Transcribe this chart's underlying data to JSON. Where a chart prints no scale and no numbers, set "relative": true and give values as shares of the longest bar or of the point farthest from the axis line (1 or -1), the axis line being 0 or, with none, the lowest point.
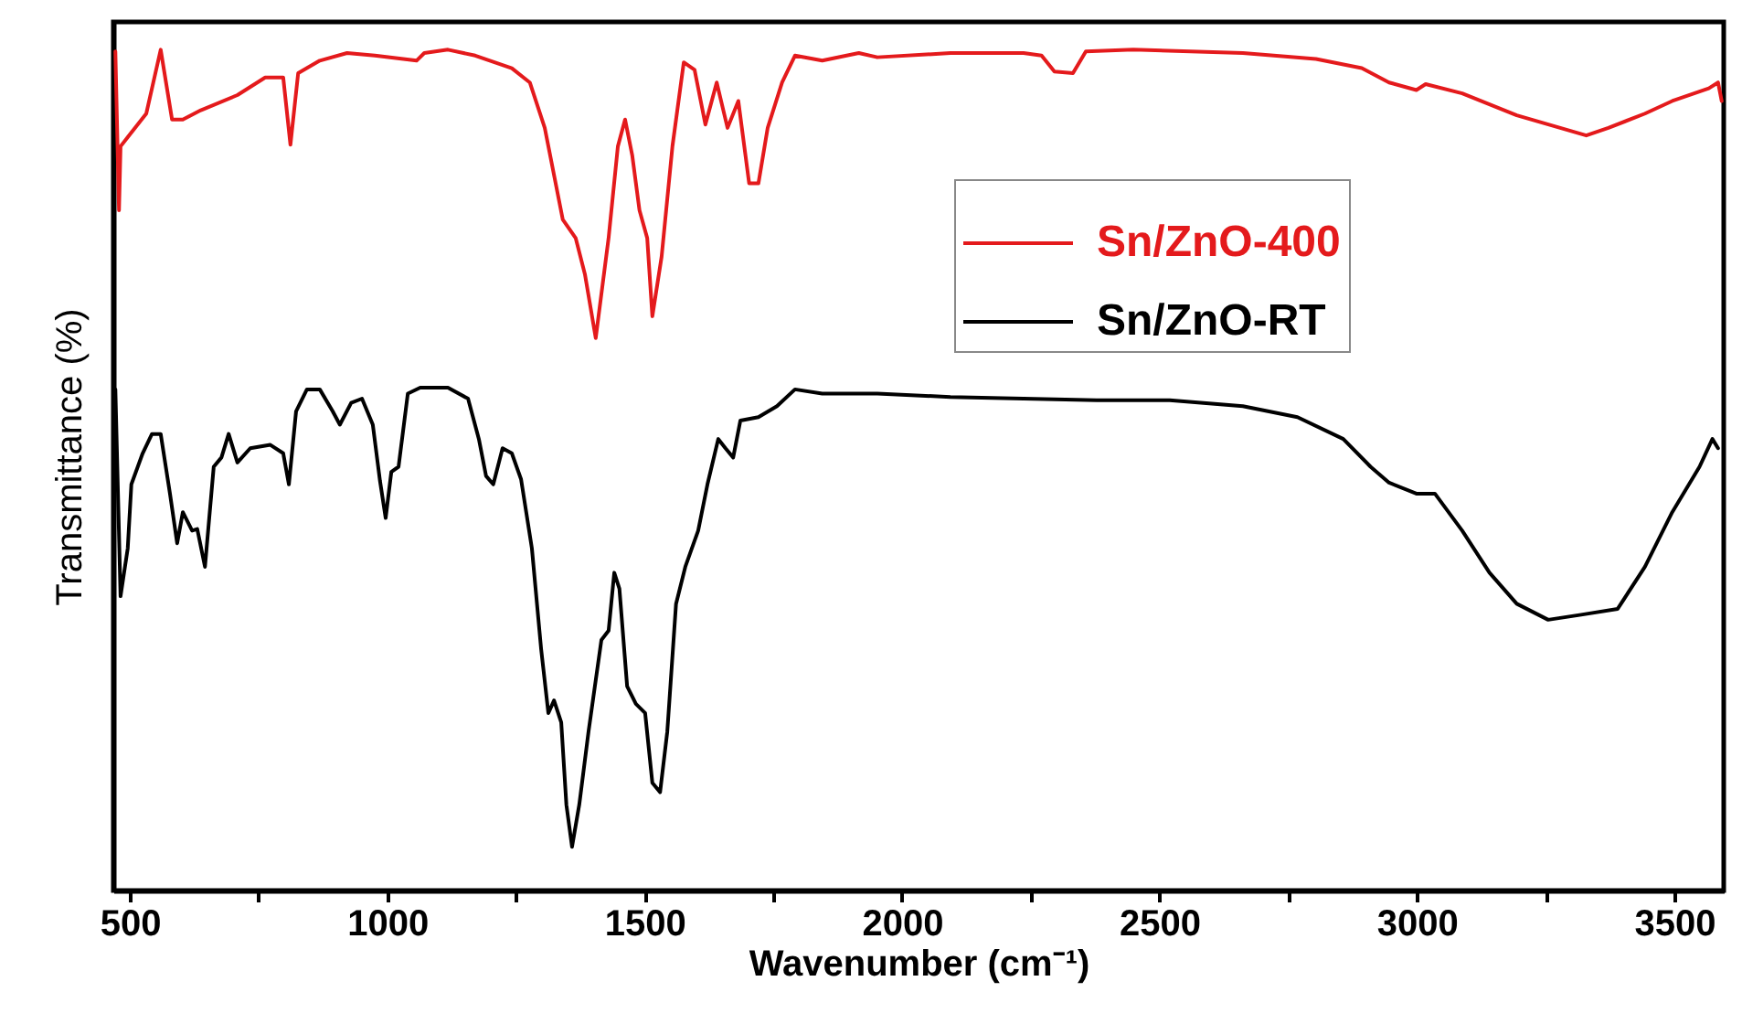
{
  "chart_data": {
    "type": "line",
    "xlabel": "Wavenumber (cm⁻¹)",
    "ylabel": "Transmittance (%)",
    "relative": true,
    "xlim": [
      468,
      3596
    ],
    "xticks": [
      500,
      {
        "value": 750,
        "label": null
      },
      1000,
      {
        "value": 1250,
        "label": null
      },
      1500,
      {
        "value": 1750,
        "label": null
      },
      2000,
      {
        "value": 2250,
        "label": null
      },
      2500,
      {
        "value": 2750,
        "label": null
      },
      3000,
      {
        "value": 3250,
        "label": null
      },
      3500
    ],
    "tick_labels": "x",
    "legend": "top right",
    "grid": false,
    "series": [
      {
        "name": "Sn/ZnO-400",
        "color": "#e41a1c",
        "x": [
          472,
          479,
          482,
          496,
          532,
          560,
          582,
          603,
          638,
          709,
          763,
          798,
          812,
          827,
          869,
          922,
          976,
          1057,
          1072,
          1118,
          1171,
          1242,
          1277,
          1306,
          1341,
          1366,
          1384,
          1405,
          1430,
          1448,
          1462,
          1476,
          1490,
          1505,
          1515,
          1533,
          1554,
          1576,
          1597,
          1618,
          1640,
          1661,
          1682,
          1703,
          1721,
          1739,
          1767,
          1792,
          1845,
          1916,
          1952,
          2094,
          2236,
          2271,
          2296,
          2332,
          2357,
          2449,
          2662,
          2804,
          2893,
          2946,
          2999,
          3017,
          3088,
          3194,
          3329,
          3372,
          3443,
          3496,
          3567,
          3585,
          3592
        ],
        "values": [
          0.998,
          0.809,
          0.885,
          0.896,
          0.924,
          1.0,
          0.917,
          0.917,
          0.928,
          0.946,
          0.967,
          0.967,
          0.887,
          0.972,
          0.987,
          0.996,
          0.993,
          0.987,
          0.996,
          1.0,
          0.993,
          0.978,
          0.961,
          0.907,
          0.798,
          0.776,
          0.733,
          0.657,
          0.776,
          0.885,
          0.917,
          0.874,
          0.809,
          0.776,
          0.683,
          0.754,
          0.885,
          0.985,
          0.976,
          0.911,
          0.961,
          0.907,
          0.939,
          0.841,
          0.841,
          0.907,
          0.961,
          0.993,
          0.987,
          0.996,
          0.991,
          0.996,
          0.996,
          0.993,
          0.974,
          0.972,
          0.998,
          1.0,
          0.996,
          0.989,
          0.978,
          0.961,
          0.952,
          0.959,
          0.948,
          0.922,
          0.898,
          0.907,
          0.924,
          0.939,
          0.954,
          0.961,
          0.939
        ]
      },
      {
        "name": "Sn/ZnO-RT",
        "color": "#000000",
        "x": [
          472,
          482,
          496,
          503,
          525,
          543,
          560,
          578,
          592,
          603,
          621,
          631,
          646,
          663,
          678,
          692,
          709,
          734,
          773,
          798,
          809,
          823,
          844,
          869,
          894,
          908,
          930,
          951,
          972,
          986,
          997,
          1008,
          1022,
          1040,
          1064,
          1118,
          1157,
          1178,
          1192,
          1206,
          1224,
          1242,
          1260,
          1281,
          1299,
          1313,
          1324,
          1338,
          1348,
          1359,
          1373,
          1391,
          1416,
          1430,
          1441,
          1451,
          1466,
          1483,
          1501,
          1515,
          1530,
          1544,
          1561,
          1579,
          1604,
          1622,
          1643,
          1657,
          1672,
          1686,
          1721,
          1757,
          1792,
          1845,
          1916,
          1952,
          2094,
          2236,
          2378,
          2520,
          2662,
          2768,
          2857,
          2910,
          2946,
          2999,
          3035,
          3088,
          3141,
          3194,
          3255,
          3319,
          3390,
          3443,
          3496,
          3549,
          3574,
          3585
        ],
        "values": [
          0.596,
          0.35,
          0.407,
          0.483,
          0.52,
          0.543,
          0.543,
          0.472,
          0.413,
          0.45,
          0.428,
          0.43,
          0.385,
          0.504,
          0.515,
          0.543,
          0.509,
          0.526,
          0.53,
          0.52,
          0.483,
          0.57,
          0.596,
          0.596,
          0.57,
          0.554,
          0.58,
          0.585,
          0.554,
          0.487,
          0.443,
          0.498,
          0.504,
          0.591,
          0.598,
          0.598,
          0.585,
          0.537,
          0.493,
          0.483,
          0.526,
          0.52,
          0.489,
          0.407,
          0.287,
          0.211,
          0.226,
          0.2,
          0.102,
          0.052,
          0.102,
          0.189,
          0.298,
          0.309,
          0.378,
          0.359,
          0.243,
          0.222,
          0.211,
          0.128,
          0.117,
          0.189,
          0.341,
          0.385,
          0.428,
          0.483,
          0.537,
          0.526,
          0.515,
          0.559,
          0.563,
          0.576,
          0.596,
          0.591,
          0.591,
          0.591,
          0.587,
          0.585,
          0.583,
          0.583,
          0.576,
          0.563,
          0.537,
          0.504,
          0.485,
          0.472,
          0.472,
          0.428,
          0.378,
          0.341,
          0.322,
          0.328,
          0.335,
          0.385,
          0.45,
          0.504,
          0.537,
          0.526
        ]
      }
    ]
  }
}
